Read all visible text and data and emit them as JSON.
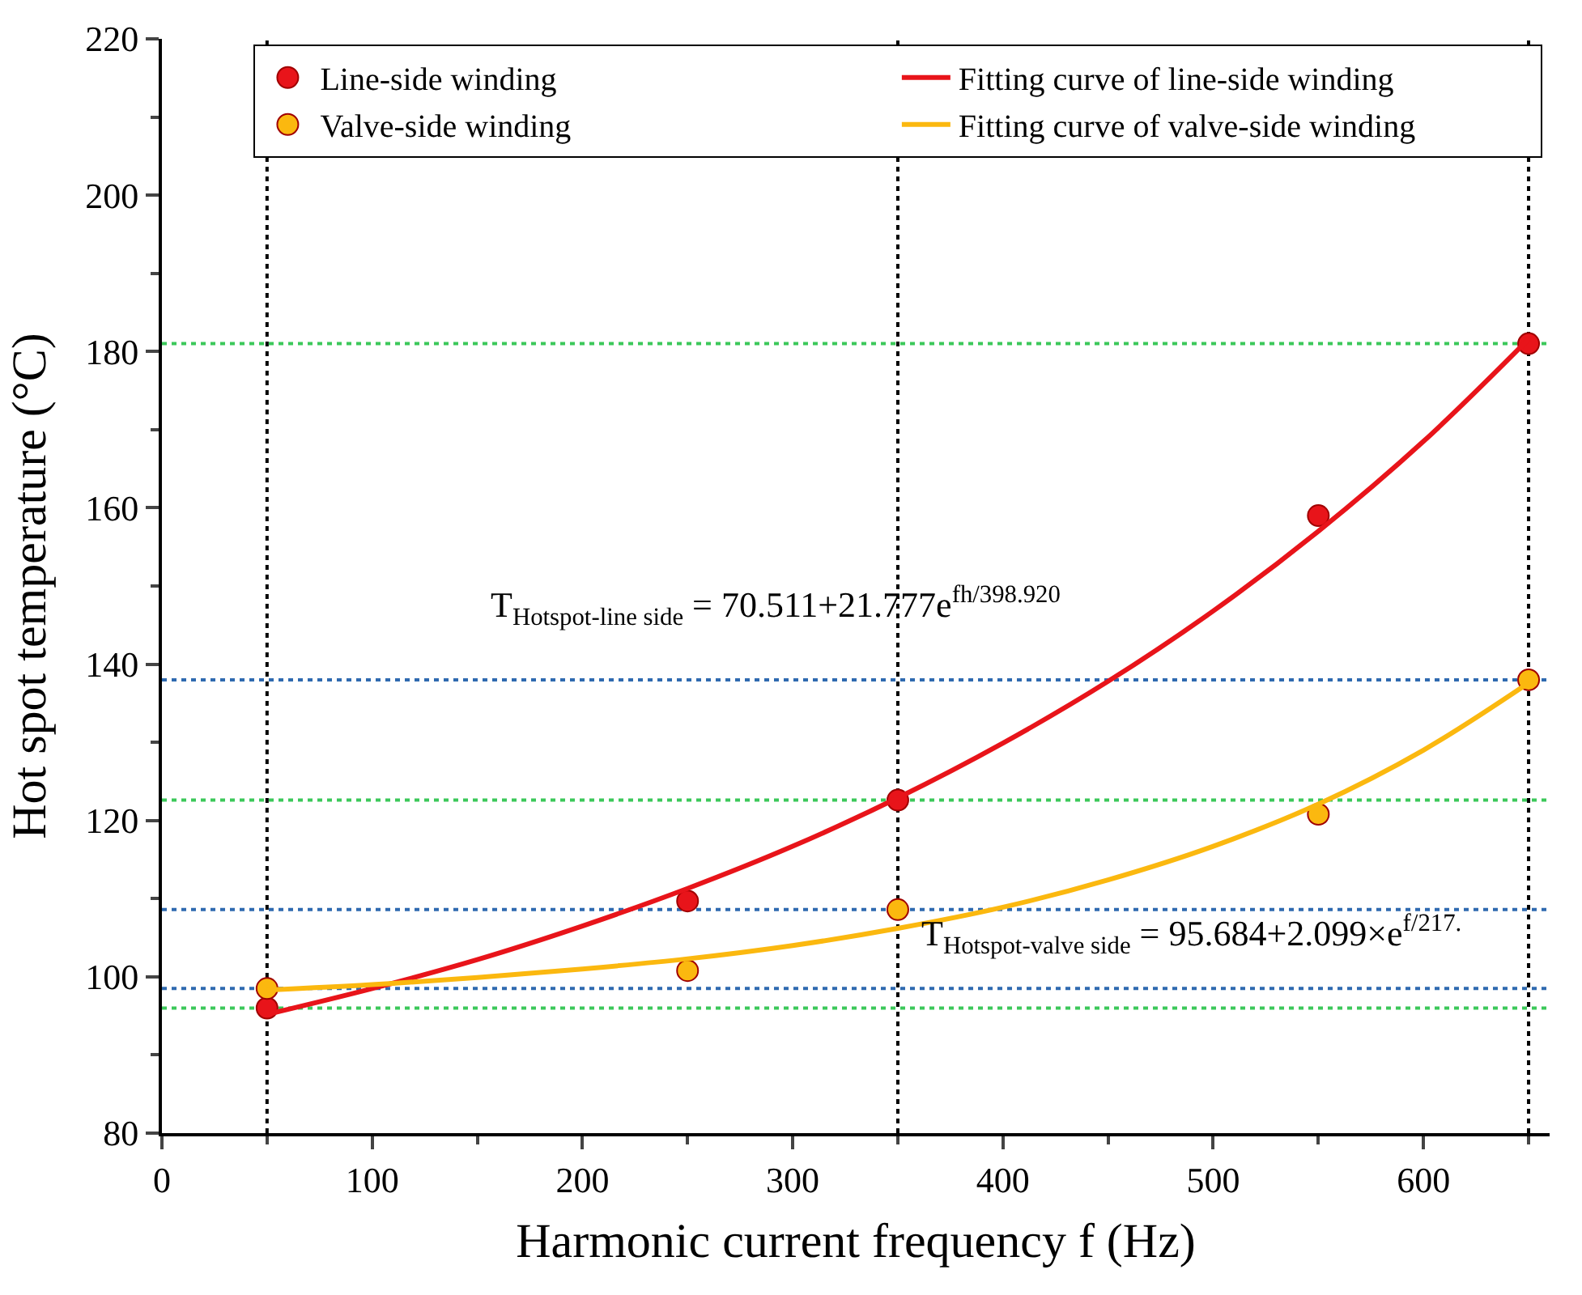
{
  "chart_data": {
    "type": "scatter",
    "xlabel": "Harmonic current frequency f (Hz)",
    "ylabel": "Hot spot temperature (°C)",
    "xlim": [
      0,
      660
    ],
    "xticks": [
      0,
      100,
      200,
      300,
      400,
      500,
      600
    ],
    "ylim": [
      80,
      220
    ],
    "yticks": [
      80,
      100,
      120,
      140,
      160,
      180,
      200,
      220
    ],
    "grid": false,
    "legend": "top right",
    "series": [
      {
        "name": "Line-side winding",
        "marker": "circle",
        "color": "#e8141a",
        "x": [
          50,
          250,
          350,
          550,
          650
        ],
        "values": [
          96,
          109.7,
          122.6,
          159,
          181
        ]
      },
      {
        "name": "Fitting curve of line-side winding",
        "type": "line",
        "marker": "none",
        "color": "#e8141a",
        "x": [
          50,
          100,
          150,
          200,
          250,
          300,
          350,
          400,
          450,
          500,
          550,
          600,
          650
        ],
        "values": [
          95.2,
          98.5,
          102.2,
          106.5,
          111.3,
          116.7,
          122.9,
          129.9,
          137.8,
          146.8,
          157.0,
          168.5,
          181.6
        ]
      },
      {
        "name": "Valve-side winding",
        "marker": "circle",
        "color": "#fbb80f",
        "x": [
          50,
          250,
          350,
          550,
          650
        ],
        "values": [
          98.5,
          100.8,
          108.6,
          120.8,
          138
        ]
      },
      {
        "name": "Fitting curve of valve-side winding",
        "type": "line",
        "marker": "none",
        "color": "#fbb80f",
        "x": [
          50,
          100,
          150,
          200,
          250,
          300,
          350,
          400,
          450,
          500,
          550,
          600,
          650
        ],
        "values": [
          98.3,
          99.0,
          99.9,
          101.0,
          102.3,
          104.0,
          106.2,
          108.9,
          112.4,
          116.7,
          122.1,
          129.0,
          137.6
        ]
      }
    ],
    "ref_lines": [
      {
        "axis": "y",
        "value": 181,
        "color": "#3cc85a",
        "line_style": "dotted"
      },
      {
        "axis": "y",
        "value": 138,
        "color": "#2f6ab0",
        "line_style": "dotted"
      },
      {
        "axis": "y",
        "value": 122.6,
        "color": "#3cc85a",
        "line_style": "dotted"
      },
      {
        "axis": "y",
        "value": 108.6,
        "color": "#2f6ab0",
        "line_style": "dotted"
      },
      {
        "axis": "y",
        "value": 98.5,
        "color": "#2f6ab0",
        "line_style": "dotted"
      },
      {
        "axis": "y",
        "value": 96,
        "color": "#3cc85a",
        "line_style": "dotted"
      },
      {
        "axis": "x",
        "value": 50,
        "color": "#000000",
        "line_style": "dotted"
      },
      {
        "axis": "x",
        "value": 350,
        "color": "#000000",
        "line_style": "dotted"
      },
      {
        "axis": "x",
        "value": 650,
        "color": "#000000",
        "line_style": "dotted"
      }
    ],
    "annotations": [
      "T$_{Hotspot-line side}$ = 70.511+21.777e$^{fh/398.920}$",
      "T$_{Hotspot-valve side}$ = 95.684+2.099×e$^{f/217.}$"
    ]
  }
}
